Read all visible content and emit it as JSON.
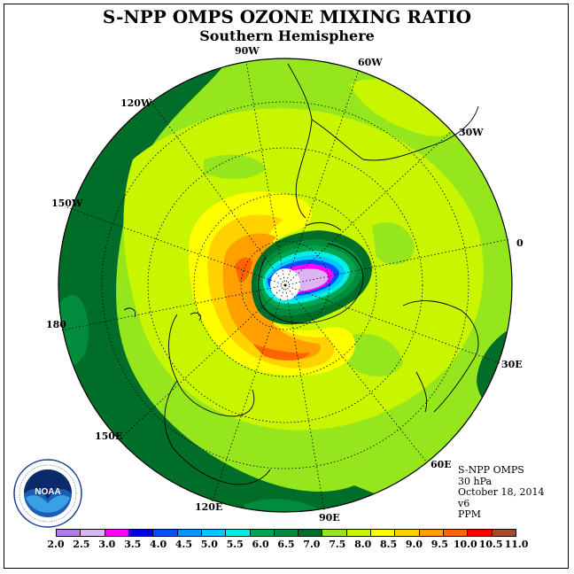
{
  "title": "S-NPP OMPS OZONE MIXING RATIO",
  "subtitle": "Southern Hemisphere",
  "longitude_labels": [
    "90W",
    "60W",
    "30W",
    "0",
    "30E",
    "60E",
    "90E",
    "120E",
    "150E",
    "180",
    "150W",
    "120W"
  ],
  "info": {
    "instrument": "S-NPP OMPS",
    "level": "30 hPa",
    "date": "October 18, 2014",
    "version": "v6",
    "units": "PPM"
  },
  "logo": {
    "text": "NOAA",
    "icon": "noaa-logo"
  },
  "colorbar": {
    "ticks": [
      "2.0",
      "2.5",
      "3.0",
      "3.5",
      "4.0",
      "4.5",
      "5.0",
      "5.5",
      "6.0",
      "6.5",
      "7.0",
      "7.5",
      "8.0",
      "8.5",
      "9.0",
      "9.5",
      "10.0",
      "10.5",
      "11.0"
    ],
    "colors": [
      "#b57be8",
      "#dcb4f2",
      "#ff00ff",
      "#0000e6",
      "#0050ff",
      "#0096ff",
      "#00c8ff",
      "#00f0e6",
      "#00a550",
      "#008c3c",
      "#006e28",
      "#96e61e",
      "#c8f500",
      "#ffff00",
      "#ffd200",
      "#ffa000",
      "#ff6400",
      "#ff0000",
      "#a05028"
    ]
  }
}
